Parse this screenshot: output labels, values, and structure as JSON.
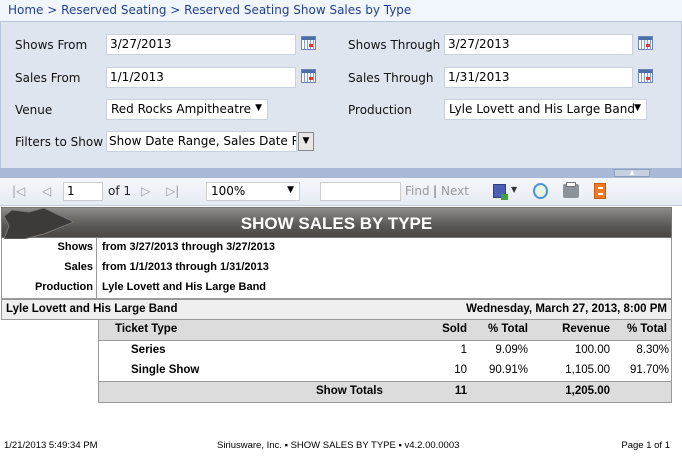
{
  "breadcrumb": [
    "Home",
    "Reserved Seating",
    "Reserved Seating Show Sales by Type"
  ],
  "breadcrumb_sep": ">",
  "filters": {
    "shows_from": {
      "label": "Shows From",
      "value": "3/27/2013"
    },
    "shows_through": {
      "label": "Shows Through",
      "value": "3/27/2013"
    },
    "sales_from": {
      "label": "Sales From",
      "value": "1/1/2013"
    },
    "sales_through": {
      "label": "Sales Through",
      "value": "1/31/2013"
    },
    "venue": {
      "label": "Venue",
      "value": "Red Rocks Ampitheatre"
    },
    "production": {
      "label": "Production",
      "value": "Lyle Lovett and His Large Band"
    },
    "filters_to_show": {
      "label": "Filters to Show",
      "value": "Show Date Range, Sales Date R"
    }
  },
  "toolbar": {
    "page": "1",
    "of": "of 1",
    "zoom": "100%",
    "find_value": "",
    "find": "Find",
    "sep": "|",
    "next": "Next"
  },
  "report": {
    "title": "SHOW SALES BY TYPE",
    "params": [
      {
        "k": "Shows",
        "v": "from 3/27/2013 through 3/27/2013"
      },
      {
        "k": "Sales",
        "v": "from 1/1/2013 through 1/31/2013"
      },
      {
        "k": "Production",
        "v": "Lyle Lovett and His Large Band"
      }
    ],
    "band": {
      "name": "Lyle Lovett and His Large Band",
      "date": "Wednesday, March 27, 2013, 8:00 PM"
    },
    "columns": [
      "Ticket Type",
      "Sold",
      "% Total",
      "Revenue",
      "% Total"
    ],
    "rows": [
      [
        "Series",
        "1",
        "9.09%",
        "100.00",
        "8.30%"
      ],
      [
        "Single Show",
        "10",
        "90.91%",
        "1,105.00",
        "91.70%"
      ]
    ],
    "totals": {
      "label": "Show Totals",
      "sold": "11",
      "revenue": "1,205.00"
    }
  },
  "footer": {
    "left": "1/21/2013 5:49:34 PM",
    "center": "Siriusware, Inc. ▪ SHOW SALES BY TYPE ▪ v4.2.00.0003",
    "right": "Page 1 of 1"
  }
}
